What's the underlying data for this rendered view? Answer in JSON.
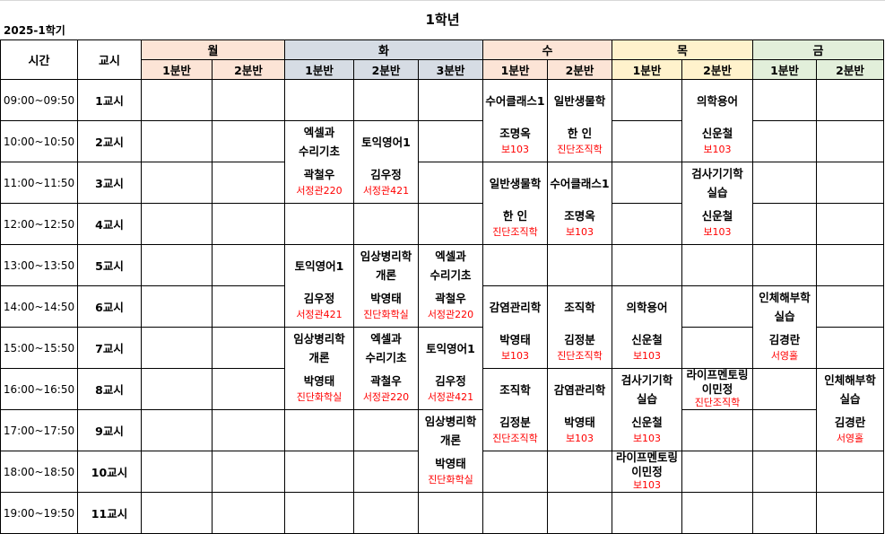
{
  "title": "1학년",
  "semester": "2025-1학기",
  "headers": {
    "time": "시간",
    "period": "교시"
  },
  "days": [
    {
      "label": "월",
      "color": "#fce4d6",
      "sections": [
        "1분반",
        "2분반"
      ]
    },
    {
      "label": "화",
      "color": "#d6dce4",
      "sections": [
        "1분반",
        "2분반",
        "3분반"
      ]
    },
    {
      "label": "수",
      "color": "#fce4d6",
      "sections": [
        "1분반",
        "2분반"
      ]
    },
    {
      "label": "목",
      "color": "#fff2cc",
      "sections": [
        "1분반",
        "2분반"
      ]
    },
    {
      "label": "금",
      "color": "#e2efda",
      "sections": [
        "1분반",
        "2분반"
      ]
    }
  ],
  "rows": [
    {
      "time": "09:00~09:50",
      "period": "1교시"
    },
    {
      "time": "10:00~10:50",
      "period": "2교시"
    },
    {
      "time": "11:00~11:50",
      "period": "3교시"
    },
    {
      "time": "12:00~12:50",
      "period": "4교시"
    },
    {
      "time": "13:00~13:50",
      "period": "5교시"
    },
    {
      "time": "14:00~14:50",
      "period": "6교시"
    },
    {
      "time": "15:00~15:50",
      "period": "7교시"
    },
    {
      "time": "16:00~16:50",
      "period": "8교시"
    },
    {
      "time": "17:00~17:50",
      "period": "9교시"
    },
    {
      "time": "18:00~18:50",
      "period": "10교시"
    },
    {
      "time": "19:00~19:50",
      "period": "11교시"
    }
  ],
  "room_color": "#ff0000",
  "courses": [
    {
      "col": 2,
      "start": 1,
      "span": 2,
      "title": [
        "엑셀과",
        "수리기초"
      ],
      "prof": "곽철우",
      "room": "서정관220"
    },
    {
      "col": 2,
      "start": 4,
      "span": 2,
      "title": [
        "토익영어1"
      ],
      "prof": "김우정",
      "room": "서정관421"
    },
    {
      "col": 2,
      "start": 6,
      "span": 2,
      "title": [
        "임상병리학",
        "개론"
      ],
      "prof": "박영태",
      "room": "진단화학실"
    },
    {
      "col": 3,
      "start": 1,
      "span": 2,
      "title": [
        "토익영어1"
      ],
      "prof": "김우정",
      "room": "서정관421"
    },
    {
      "col": 3,
      "start": 4,
      "span": 2,
      "title": [
        "임상병리학",
        "개론"
      ],
      "prof": "박영태",
      "room": "진단화학실"
    },
    {
      "col": 3,
      "start": 6,
      "span": 2,
      "title": [
        "엑셀과",
        "수리기초"
      ],
      "prof": "곽철우",
      "room": "서정관220"
    },
    {
      "col": 4,
      "start": 4,
      "span": 2,
      "title": [
        "엑셀과",
        "수리기초"
      ],
      "prof": "곽철우",
      "room": "서정관220"
    },
    {
      "col": 4,
      "start": 6,
      "span": 2,
      "title": [
        "토익영어1"
      ],
      "prof": "김우정",
      "room": "서정관421"
    },
    {
      "col": 4,
      "start": 8,
      "span": 2,
      "title": [
        "임상병리학",
        "개론"
      ],
      "prof": "박영태",
      "room": "진단화학실"
    },
    {
      "col": 5,
      "start": 0,
      "span": 2,
      "title": [
        "수어클래스1"
      ],
      "prof": "조명옥",
      "room": "보103"
    },
    {
      "col": 5,
      "start": 2,
      "span": 2,
      "title": [
        "일반생물학"
      ],
      "prof": "한 인",
      "room": "진단조직학"
    },
    {
      "col": 5,
      "start": 5,
      "span": 2,
      "title": [
        "감염관리학"
      ],
      "prof": "박영태",
      "room": "보103"
    },
    {
      "col": 5,
      "start": 7,
      "span": 2,
      "title": [
        "조직학"
      ],
      "prof": "김정분",
      "room": "진단조직학"
    },
    {
      "col": 6,
      "start": 0,
      "span": 2,
      "title": [
        "일반생물학"
      ],
      "prof": "한 인",
      "room": "진단조직학"
    },
    {
      "col": 6,
      "start": 2,
      "span": 2,
      "title": [
        "수어클래스1"
      ],
      "prof": "조명옥",
      "room": "보103"
    },
    {
      "col": 6,
      "start": 5,
      "span": 2,
      "title": [
        "조직학"
      ],
      "prof": "김정분",
      "room": "진단조직학"
    },
    {
      "col": 6,
      "start": 7,
      "span": 2,
      "title": [
        "감염관리학"
      ],
      "prof": "박영태",
      "room": "보103"
    },
    {
      "col": 7,
      "start": 5,
      "span": 2,
      "title": [
        "의학용어"
      ],
      "prof": "신운철",
      "room": "보103"
    },
    {
      "col": 7,
      "start": 7,
      "span": 2,
      "title": [
        "검사기기학",
        "실습"
      ],
      "prof": "신운철",
      "room": "보103"
    },
    {
      "col": 7,
      "start": 9,
      "span": 1,
      "title": [
        "라이프멘토링"
      ],
      "prof": "이민정",
      "room": "보103"
    },
    {
      "col": 8,
      "start": 0,
      "span": 2,
      "title": [
        "의학용어"
      ],
      "prof": "신운철",
      "room": "보103"
    },
    {
      "col": 8,
      "start": 2,
      "span": 2,
      "title": [
        "검사기기학",
        "실습"
      ],
      "prof": "신운철",
      "room": "보103"
    },
    {
      "col": 8,
      "start": 7,
      "span": 1,
      "title": [
        "라이프멘토링"
      ],
      "prof": "이민정",
      "room": "진단조직학"
    },
    {
      "col": 9,
      "start": 5,
      "span": 2,
      "title": [
        "인체해부학",
        "실습"
      ],
      "prof": "김경란",
      "room": "서영홀"
    },
    {
      "col": 10,
      "start": 7,
      "span": 2,
      "title": [
        "인체해부학",
        "실습"
      ],
      "prof": "김경란",
      "room": "서영홀"
    }
  ]
}
